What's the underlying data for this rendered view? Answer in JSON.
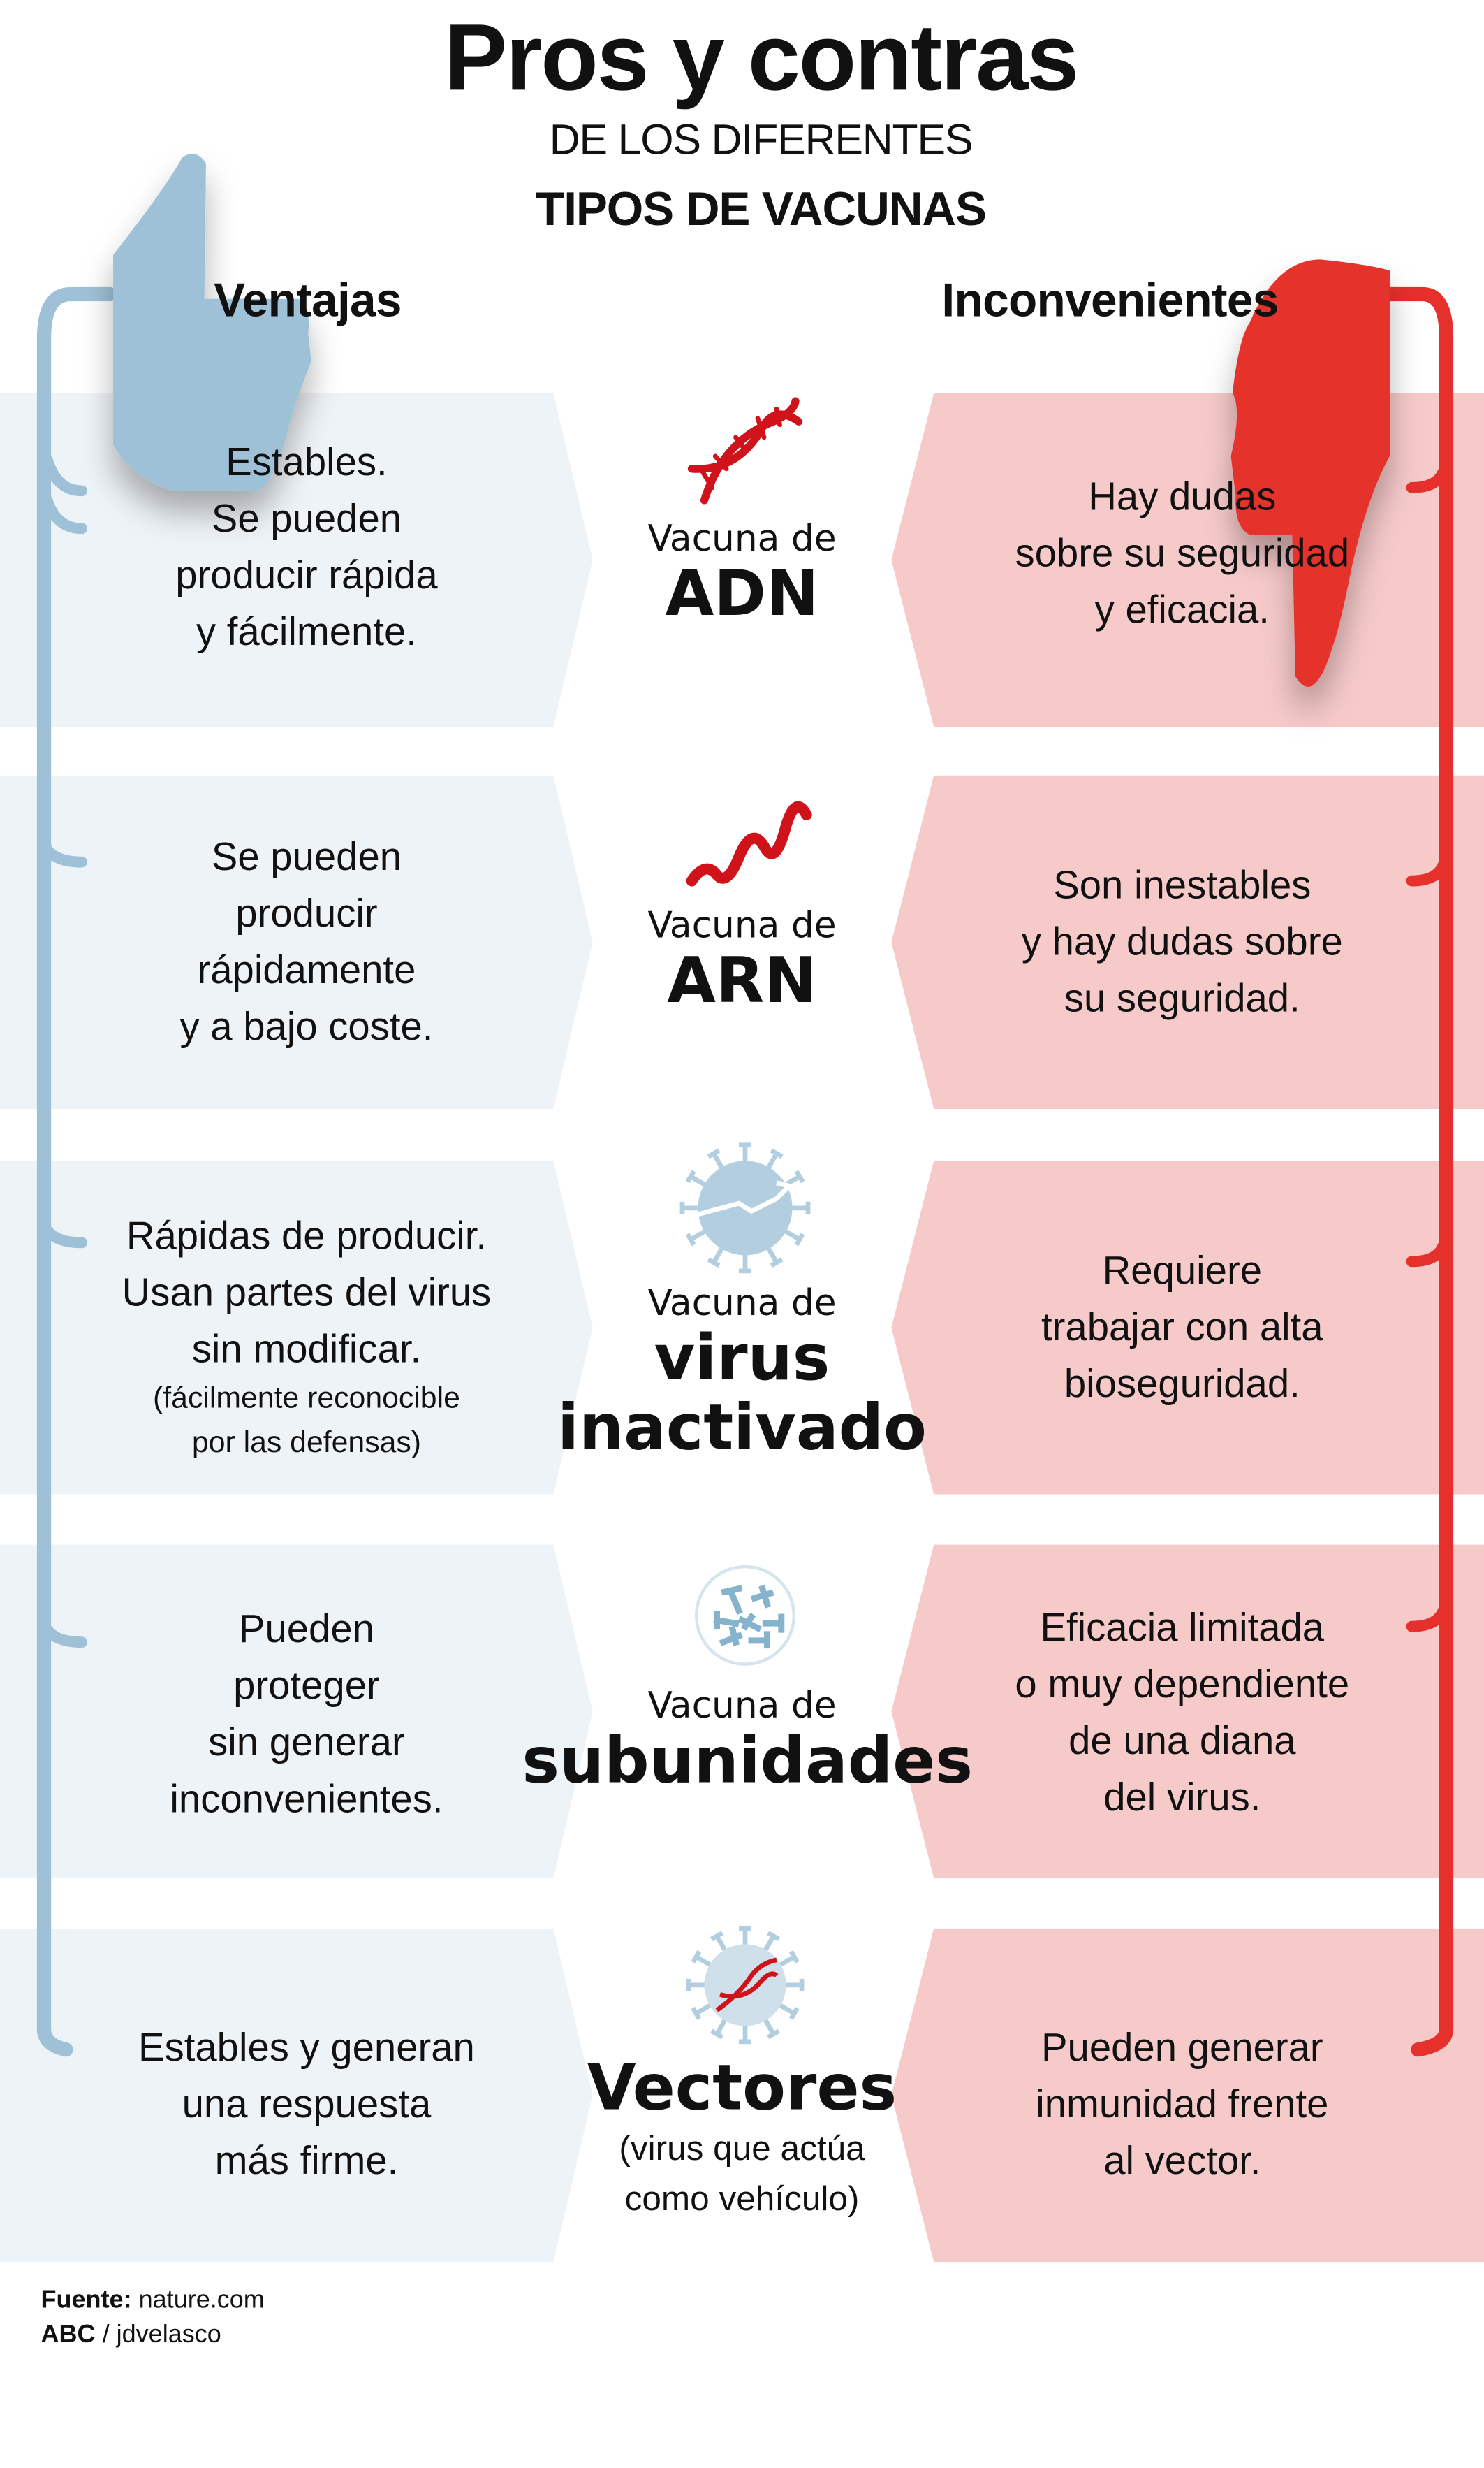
{
  "header": {
    "title": "Pros y contras",
    "subtitle1": "DE LOS DIFERENTES",
    "subtitle2": "TIPOS DE VACUNAS"
  },
  "columns": {
    "pros": "Ventajas",
    "cons": "Inconvenientes"
  },
  "colors": {
    "pros_accent": "#9fc1d7",
    "cons_accent": "#e5302c",
    "pros_panel": "#eef3f7",
    "cons_panel": "#f7caca",
    "helix": "#d0121b"
  },
  "rows": [
    {
      "icon": "dna-icon",
      "prefix": "Vacuna de",
      "name": "ADN",
      "pros": "Estables.\nSe pueden\nproducir rápida\ny fácilmente.",
      "cons": "Hay dudas\nsobre su seguridad\ny eficacia."
    },
    {
      "icon": "rna-strand-icon",
      "prefix": "Vacuna de",
      "name": "ARN",
      "pros": "Se pueden\nproducir\nrápidamente\ny a bajo coste.",
      "cons": "Son inestables\ny hay dudas sobre\nsu seguridad."
    },
    {
      "icon": "broken-virus-icon",
      "prefix": "Vacuna de",
      "name": "virus\ninactivado",
      "pros": "Rápidas de producir.\nUsan partes del virus\nsin modificar.",
      "pros_note": "(fácilmente reconocible\npor las defensas)",
      "cons": "Requiere\ntrabajar con alta\nbioseguridad."
    },
    {
      "icon": "protein-subunits-icon",
      "prefix": "Vacuna de",
      "name": "subunidades",
      "pros": "Pueden\nproteger\nsin generar\ninconvenientes.",
      "cons": "Eficacia limitada\no muy dependiente\nde una diana\ndel virus."
    },
    {
      "icon": "virus-vector-icon",
      "name": "Vectores",
      "note": "(virus que actúa\ncomo vehículo)",
      "pros": "Estables y generan\nuna respuesta\nmás firme.",
      "cons": "Pueden generar\ninmunidad frente\nal vector."
    }
  ],
  "footer": {
    "source_label": "Fuente:",
    "source": "nature.com",
    "credit_org": "ABC",
    "credit_author": "/ jdvelasco"
  }
}
